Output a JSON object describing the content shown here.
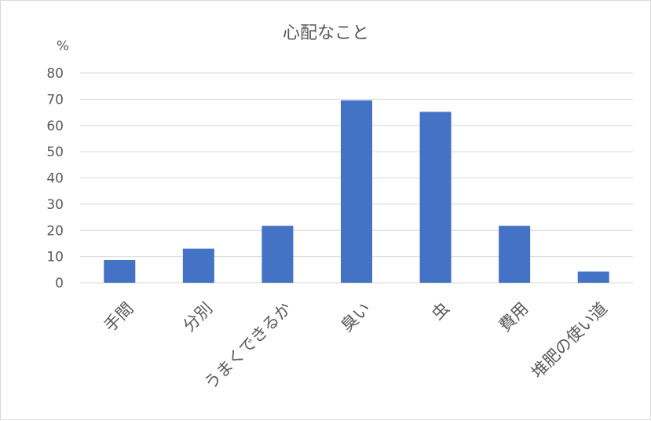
{
  "chart_data": {
    "type": "bar",
    "title": "心配なこと",
    "ylabel": "%",
    "xlabel": "",
    "categories": [
      "手間",
      "分別",
      "うまくできるか",
      "臭い",
      "虫",
      "費用",
      "堆肥の使い道"
    ],
    "values": [
      8.7,
      13,
      21.7,
      69.6,
      65.2,
      21.7,
      4.3
    ],
    "ylim": [
      0,
      80
    ],
    "yticks": [
      "0",
      "10",
      "20",
      "30",
      "40",
      "50",
      "60",
      "70",
      "80"
    ],
    "grid": true,
    "legend": "none",
    "bar_color": "#4472c4",
    "grid_color": "#d9d9d9",
    "text_color": "#595959"
  }
}
